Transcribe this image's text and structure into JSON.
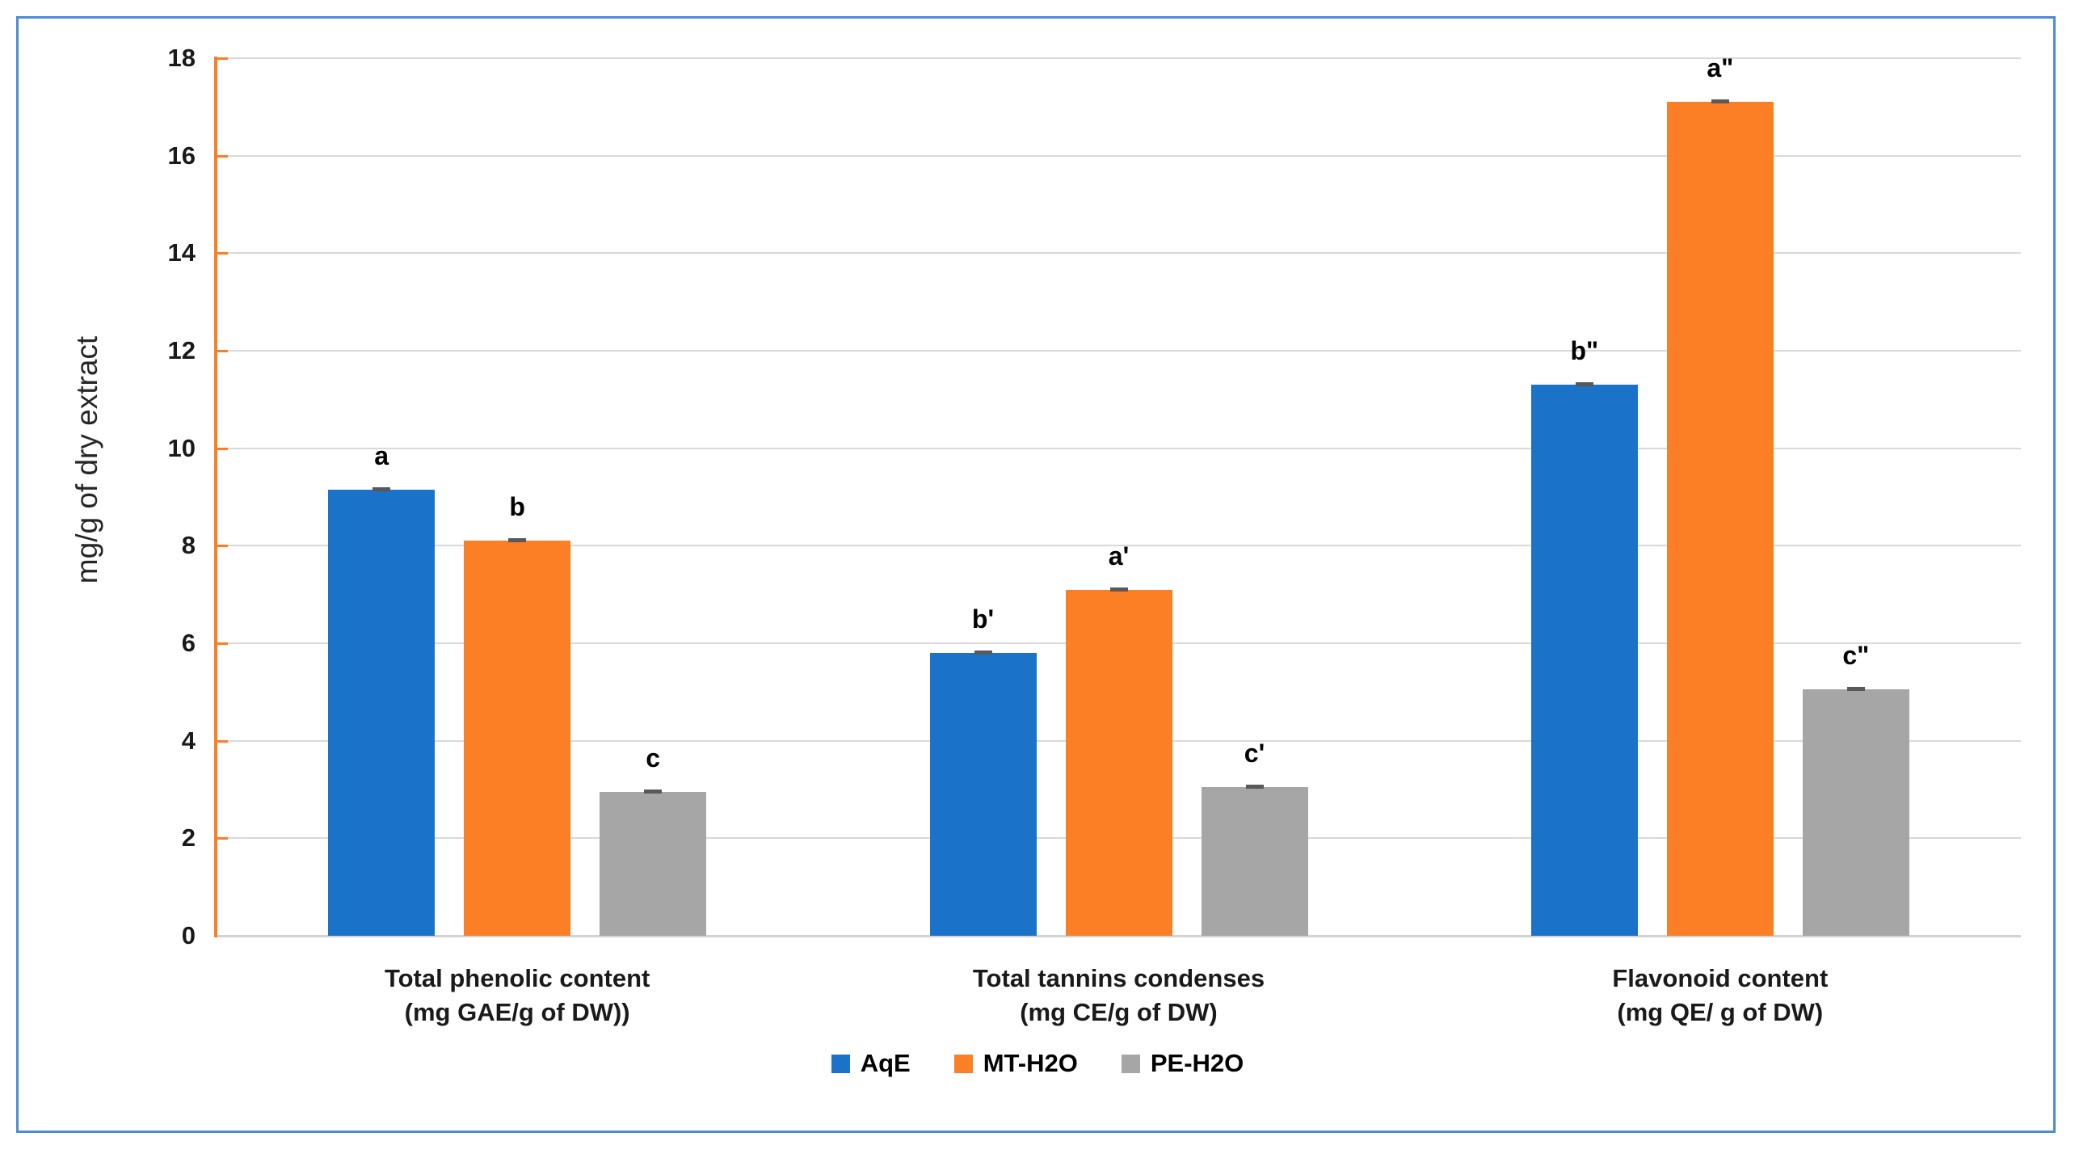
{
  "chart_data": {
    "type": "bar",
    "title": "",
    "ylabel": "mg/g of dry extract",
    "xlabel": "",
    "ylim": [
      0,
      18
    ],
    "ytick_step": 2,
    "yticks": [
      0,
      2,
      4,
      6,
      8,
      10,
      12,
      14,
      16,
      18
    ],
    "grid": true,
    "legend_position": "bottom",
    "error_bars": true,
    "categories": [
      {
        "line1": "Total phenolic content",
        "line2": "(mg GAE/g of DW))"
      },
      {
        "line1": "Total tannins condenses",
        "line2": "(mg CE/g of DW)"
      },
      {
        "line1": "Flavonoid content",
        "line2": "(mg QE/ g of DW)"
      }
    ],
    "series": [
      {
        "name": "AqE",
        "color": "#1a73c8",
        "values": [
          9.15,
          5.8,
          11.3
        ],
        "sig_labels": [
          "a",
          "b'",
          "b\""
        ]
      },
      {
        "name": "MT-H2O",
        "color": "#fc7e25",
        "values": [
          8.1,
          7.1,
          17.1
        ],
        "sig_labels": [
          "b",
          "a'",
          "a\""
        ]
      },
      {
        "name": "PE-H2O",
        "color": "#a6a6a6",
        "values": [
          2.95,
          3.05,
          5.05
        ],
        "sig_labels": [
          "c",
          "c'",
          "c\""
        ]
      }
    ]
  },
  "colors": {
    "gridline": "#d9d9d9",
    "x_axis_line": "#d2d2d2",
    "y_axis_line": "#f97e26",
    "y_tick": "#f97e26",
    "error_cap": "#595959",
    "frame_border": "#4d8bd3",
    "background": "#ffffff"
  }
}
